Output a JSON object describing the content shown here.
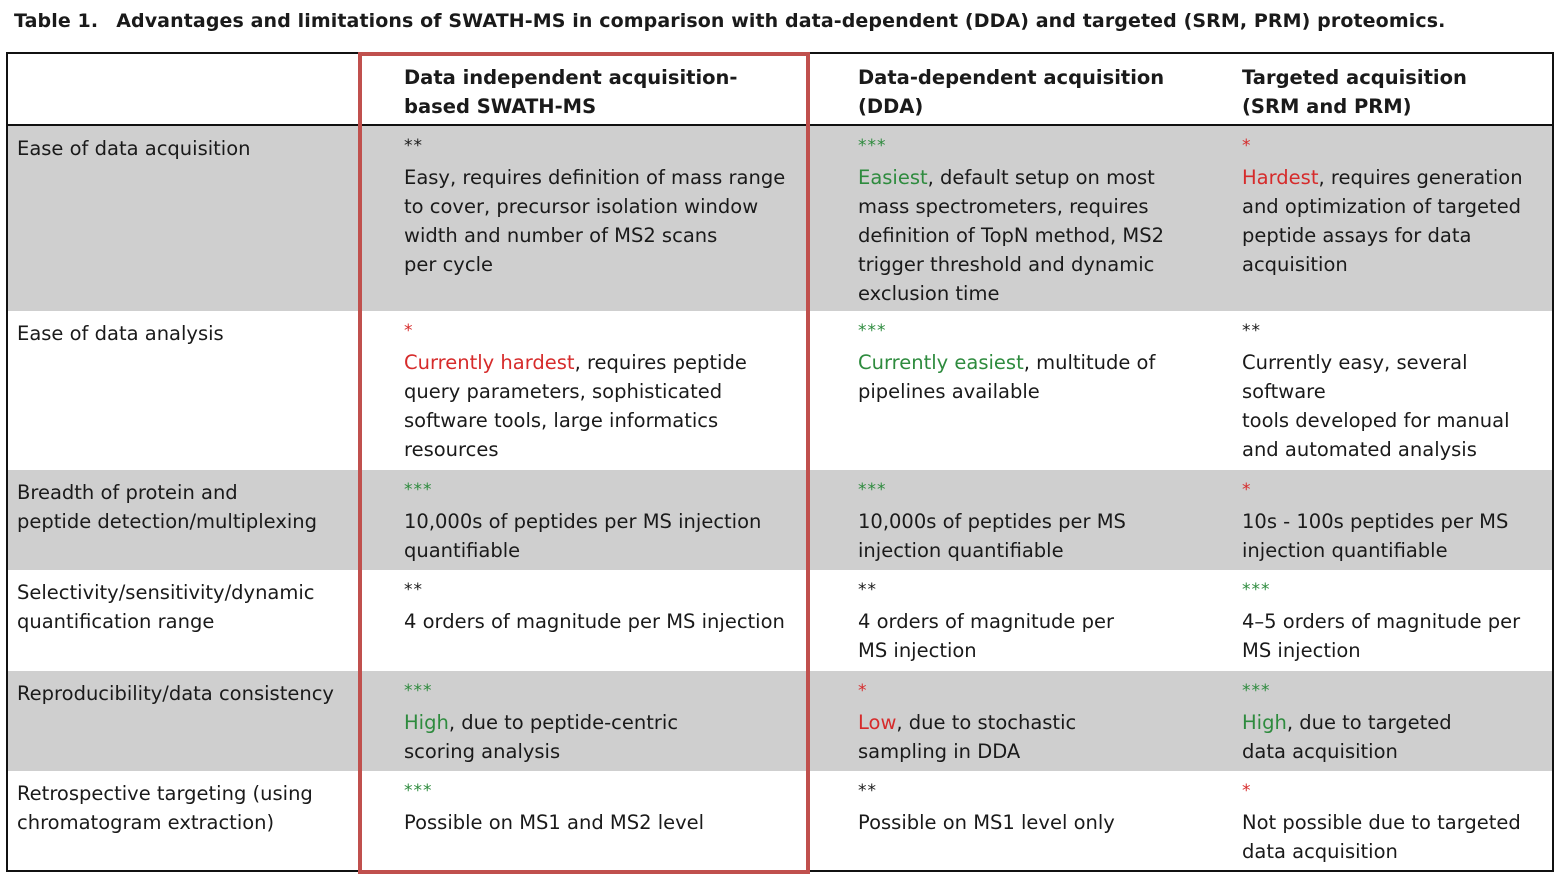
{
  "caption": {
    "number": "Table 1.",
    "title": "Advantages and limitations of SWATH-MS in comparison with data-dependent (DDA) and targeted (SRM, PRM) proteomics."
  },
  "colors": {
    "green": "#2e8b3e",
    "red": "#d62b2b",
    "highlight": "#c0504d",
    "row_grey": "#cfcfcf"
  },
  "headers": {
    "swath": [
      "Data independent acquisition-",
      "based SWATH-MS"
    ],
    "dda": [
      "Data-dependent acquisition",
      "(DDA)"
    ],
    "targeted": [
      "Targeted acquisition",
      "(SRM and PRM)"
    ]
  },
  "rows": [
    {
      "label": [
        "Ease of data acquisition"
      ],
      "swath": {
        "stars": "**",
        "star_color": "black",
        "highlight": "",
        "lines": [
          "Easy, requires definition of mass range",
          "to cover, precursor isolation window",
          "width and number of MS2 scans",
          "per cycle"
        ]
      },
      "dda": {
        "stars": "***",
        "star_color": "green",
        "highlight": "Easiest",
        "lines": [
          ", default setup on most",
          "mass spectrometers, requires",
          "definition of TopN method, MS2",
          "trigger threshold and dynamic",
          "exclusion time"
        ]
      },
      "targeted": {
        "stars": "*",
        "star_color": "red",
        "highlight": "Hardest",
        "lines": [
          ", requires generation",
          "and optimization of targeted",
          "peptide assays for data",
          "acquisition"
        ]
      }
    },
    {
      "label": [
        "Ease of data analysis"
      ],
      "swath": {
        "stars": "*",
        "star_color": "red",
        "highlight": "Currently hardest",
        "lines": [
          ", requires peptide",
          "query parameters, sophisticated",
          "software tools, large informatics",
          "resources"
        ]
      },
      "dda": {
        "stars": "***",
        "star_color": "green",
        "highlight": "Currently easiest",
        "lines": [
          ", multitude of",
          "pipelines available"
        ]
      },
      "targeted": {
        "stars": "**",
        "star_color": "black",
        "highlight": "",
        "lines": [
          "Currently easy, several software",
          "tools developed for manual",
          "and automated analysis"
        ]
      }
    },
    {
      "label": [
        "Breadth of protein and",
        "peptide detection/multiplexing"
      ],
      "swath": {
        "stars": "***",
        "star_color": "green",
        "highlight": "",
        "lines": [
          "10,000s of peptides per MS injection",
          "quantifiable"
        ]
      },
      "dda": {
        "stars": "***",
        "star_color": "green",
        "highlight": "",
        "lines": [
          "10,000s of peptides per MS",
          "injection quantifiable"
        ]
      },
      "targeted": {
        "stars": "*",
        "star_color": "red",
        "highlight": "",
        "lines": [
          "10s - 100s peptides per MS",
          "injection quantifiable"
        ]
      }
    },
    {
      "label": [
        "Selectivity/sensitivity/dynamic",
        "quantification range"
      ],
      "swath": {
        "stars": "**",
        "star_color": "black",
        "highlight": "",
        "lines": [
          "4 orders of magnitude per MS injection"
        ]
      },
      "dda": {
        "stars": "**",
        "star_color": "black",
        "highlight": "",
        "lines": [
          "4 orders of magnitude per",
          "MS injection"
        ]
      },
      "targeted": {
        "stars": "***",
        "star_color": "green",
        "highlight": "",
        "lines": [
          "4–5 orders of magnitude per",
          "MS injection"
        ]
      }
    },
    {
      "label": [
        "Reproducibility/data consistency"
      ],
      "swath": {
        "stars": "***",
        "star_color": "green",
        "highlight": "High",
        "lines": [
          ", due to peptide-centric",
          "scoring analysis"
        ]
      },
      "dda": {
        "stars": "*",
        "star_color": "red",
        "highlight": "Low",
        "lines": [
          ", due to stochastic",
          "sampling in DDA"
        ]
      },
      "targeted": {
        "stars": "***",
        "star_color": "green",
        "highlight": "High",
        "lines": [
          ", due to targeted",
          "data acquisition"
        ]
      }
    },
    {
      "label": [
        "Retrospective targeting (using",
        "chromatogram extraction)"
      ],
      "swath": {
        "stars": "***",
        "star_color": "green",
        "highlight": "",
        "lines": [
          "Possible on MS1 and MS2 level"
        ]
      },
      "dda": {
        "stars": "**",
        "star_color": "black",
        "highlight": "",
        "lines": [
          "Possible on MS1 level only"
        ]
      },
      "targeted": {
        "stars": "*",
        "star_color": "red",
        "highlight": "",
        "lines": [
          "Not possible due to targeted",
          "data acquisition"
        ]
      }
    }
  ]
}
